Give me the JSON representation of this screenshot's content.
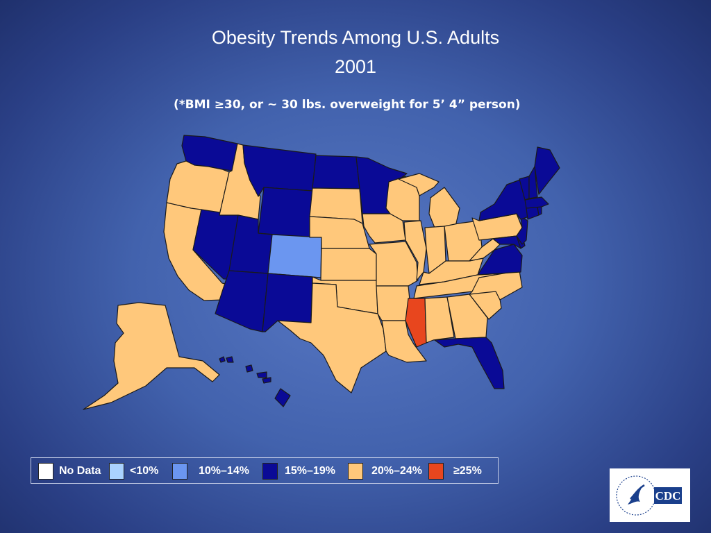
{
  "title": {
    "line1": "Obesity Trends Among U.S. Adults",
    "line2": "2001"
  },
  "subtitle": "(*BMI ≥30, or ~ 30 lbs. overweight for 5’ 4” person)",
  "legend": [
    {
      "label": "No Data",
      "color": "#ffffff"
    },
    {
      "label": "<10%",
      "color": "#aad2ff"
    },
    {
      "label": "10%–14%",
      "color": "#6b96f0"
    },
    {
      "label": "15%–19%",
      "color": "#0a0a96"
    },
    {
      "label": "20%–24%",
      "color": "#ffc87b"
    },
    {
      "label": "≥25%",
      "color": "#e8461e"
    }
  ],
  "state_categories": {
    "WA": "15%–19%",
    "OR": "20%–24%",
    "CA": "20%–24%",
    "NV": "15%–19%",
    "ID": "20%–24%",
    "MT": "15%–19%",
    "WY": "15%–19%",
    "UT": "15%–19%",
    "AZ": "15%–19%",
    "CO": "10%–14%",
    "NM": "15%–19%",
    "ND": "15%–19%",
    "SD": "20%–24%",
    "NE": "20%–24%",
    "KS": "20%–24%",
    "OK": "20%–24%",
    "TX": "20%–24%",
    "MN": "15%–19%",
    "IA": "20%–24%",
    "MO": "20%–24%",
    "AR": "20%–24%",
    "LA": "20%–24%",
    "WI": "20%–24%",
    "IL": "20%–24%",
    "MI": "20%–24%",
    "IN": "20%–24%",
    "OH": "20%–24%",
    "KY": "20%–24%",
    "TN": "20%–24%",
    "MS": "≥25%",
    "AL": "20%–24%",
    "GA": "20%–24%",
    "FL": "15%–19%",
    "SC": "20%–24%",
    "NC": "20%–24%",
    "VA": "15%–19%",
    "WV": "20%–24%",
    "PA": "20%–24%",
    "NY": "15%–19%",
    "VT": "15%–19%",
    "NH": "15%–19%",
    "ME": "15%–19%",
    "MA": "15%–19%",
    "CT": "15%–19%",
    "RI": "15%–19%",
    "NJ": "15%–19%",
    "DE": "15%–19%",
    "MD": "15%–19%",
    "AK": "20%–24%",
    "HI": "15%–19%"
  },
  "logo": {
    "text": "CDC",
    "icon": "hhs-eagle-seal-icon"
  }
}
